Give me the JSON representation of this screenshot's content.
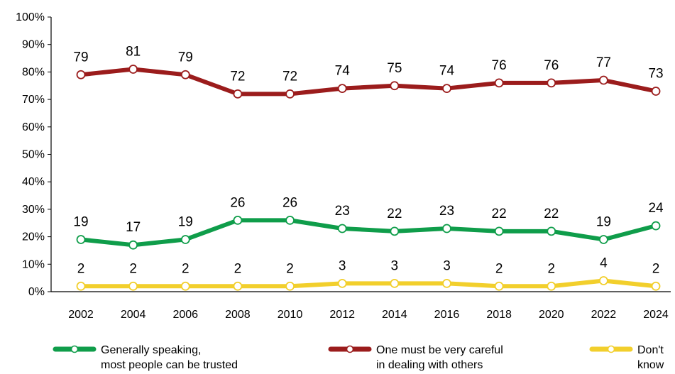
{
  "chart_data": {
    "type": "line",
    "categories": [
      "2002",
      "2004",
      "2006",
      "2008",
      "2010",
      "2012",
      "2014",
      "2016",
      "2018",
      "2020",
      "2022",
      "2024"
    ],
    "ylim": [
      0,
      100
    ],
    "yticks": [
      "0%",
      "10%",
      "20%",
      "30%",
      "40%",
      "50%",
      "60%",
      "70%",
      "80%",
      "90%",
      "100%"
    ],
    "grid": false,
    "legend_position": "bottom",
    "series": [
      {
        "key": "trusted",
        "name": "Generally speaking, most people can be trusted",
        "legend_lines": [
          "Generally speaking,",
          "most people can be trusted"
        ],
        "color": "#0f9d4a",
        "values": [
          19,
          17,
          19,
          26,
          26,
          23,
          22,
          23,
          22,
          22,
          19,
          24
        ]
      },
      {
        "key": "careful",
        "name": "One must be very careful in dealing with others",
        "legend_lines": [
          "One must be very careful",
          "in dealing with others"
        ],
        "color": "#9b1c1c",
        "values": [
          79,
          81,
          79,
          72,
          72,
          74,
          75,
          74,
          76,
          76,
          77,
          73
        ]
      },
      {
        "key": "dontknow",
        "name": "Don't know",
        "legend_lines": [
          "Don't",
          "know"
        ],
        "color": "#f2cf2c",
        "values": [
          2,
          2,
          2,
          2,
          2,
          3,
          3,
          3,
          2,
          2,
          4,
          2
        ]
      }
    ]
  }
}
